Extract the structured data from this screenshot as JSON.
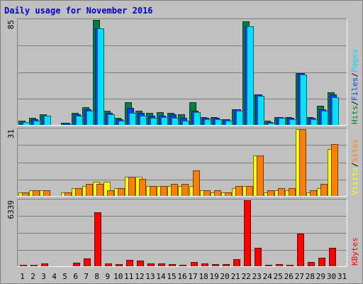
{
  "chart_data": {
    "type": "bar",
    "title": "Daily usage for November 2016",
    "categories": [
      "1",
      "2",
      "3",
      "4",
      "5",
      "6",
      "7",
      "8",
      "9",
      "10",
      "11",
      "12",
      "13",
      "14",
      "15",
      "16",
      "17",
      "18",
      "19",
      "20",
      "21",
      "22",
      "23",
      "24",
      "25",
      "26",
      "27",
      "28",
      "29",
      "30",
      "31"
    ],
    "weekend_days": [
      "5",
      "6",
      "12",
      "13",
      "19",
      "20",
      "26",
      "27"
    ],
    "colors": {
      "hits": "#008040",
      "files": "#0040ff",
      "pages": "#00e0ff",
      "visits": "#ffff00",
      "sites": "#ff8000",
      "kbytes": "#ff0000",
      "title": "#0000c8",
      "weekend": "#00805c",
      "panel": "#c0c0c0"
    },
    "panels": [
      {
        "y_max_label": "85",
        "ylim": [
          0,
          85
        ],
        "legend": [
          {
            "text": "Hits",
            "color_key": "hits"
          },
          {
            "text": "/",
            "color_key": "black"
          },
          {
            "text": "Files",
            "color_key": "files"
          },
          {
            "text": "/",
            "color_key": "black"
          },
          {
            "text": "Pages",
            "color_key": "pages"
          }
        ],
        "series": [
          {
            "name": "Hits",
            "color_key": "hits",
            "values": [
              4,
              6,
              9,
              0,
              2,
              10,
              15,
              85,
              12,
              6,
              19,
              12,
              10,
              11,
              10,
              9,
              19,
              7,
              7,
              5,
              13,
              84,
              25,
              4,
              7,
              7,
              42,
              7,
              16,
              27,
              0
            ]
          },
          {
            "name": "Files",
            "color_key": "files",
            "values": [
              3,
              5,
              8,
              0,
              2,
              9,
              13,
              78,
              10,
              5,
              14,
              10,
              8,
              8,
              9,
              6,
              12,
              6,
              6,
              5,
              13,
              80,
              25,
              3,
              7,
              6,
              42,
              6,
              13,
              25,
              0
            ]
          },
          {
            "name": "Pages",
            "color_key": "pages",
            "values": [
              3,
              4,
              8,
              0,
              1,
              8,
              12,
              78,
              9,
              4,
              10,
              8,
              6,
              7,
              6,
              4,
              11,
              5,
              5,
              4,
              12,
              80,
              24,
              2,
              6,
              5,
              41,
              5,
              12,
              23,
              0
            ]
          }
        ]
      },
      {
        "y_max_label": "31",
        "ylim": [
          0,
          31
        ],
        "legend": [
          {
            "text": "Visits",
            "color_key": "visits"
          },
          {
            "text": "/",
            "color_key": "black"
          },
          {
            "text": "Sites",
            "color_key": "sites"
          }
        ],
        "series": [
          {
            "name": "Visits",
            "color_key": "visits",
            "values": [
              2,
              3,
              3,
              0,
              2,
              4,
              5,
              7,
              7,
              4,
              9,
              9,
              5,
              5,
              5,
              5,
              5,
              3,
              2,
              2,
              4,
              5,
              19,
              2,
              3,
              3,
              31,
              2,
              4,
              22,
              0
            ]
          },
          {
            "name": "Sites",
            "color_key": "sites",
            "values": [
              2,
              3,
              3,
              0,
              2,
              4,
              6,
              6,
              3,
              4,
              9,
              8,
              5,
              5,
              6,
              6,
              12,
              3,
              3,
              2,
              5,
              5,
              19,
              3,
              4,
              4,
              31,
              3,
              6,
              24,
              0
            ]
          }
        ]
      },
      {
        "y_max_label": "6339",
        "ylim": [
          0,
          6339
        ],
        "legend": [
          {
            "text": "KBytes",
            "color_key": "kbytes"
          }
        ],
        "series": [
          {
            "name": "KBytes",
            "color_key": "kbytes",
            "values": [
              210,
              230,
              320,
              0,
              80,
              380,
              830,
              5200,
              330,
              260,
              700,
              640,
              360,
              320,
              280,
              230,
              470,
              330,
              270,
              250,
              720,
              6339,
              1820,
              170,
              260,
              220,
              3140,
              480,
              850,
              1820,
              0
            ]
          }
        ]
      }
    ]
  }
}
